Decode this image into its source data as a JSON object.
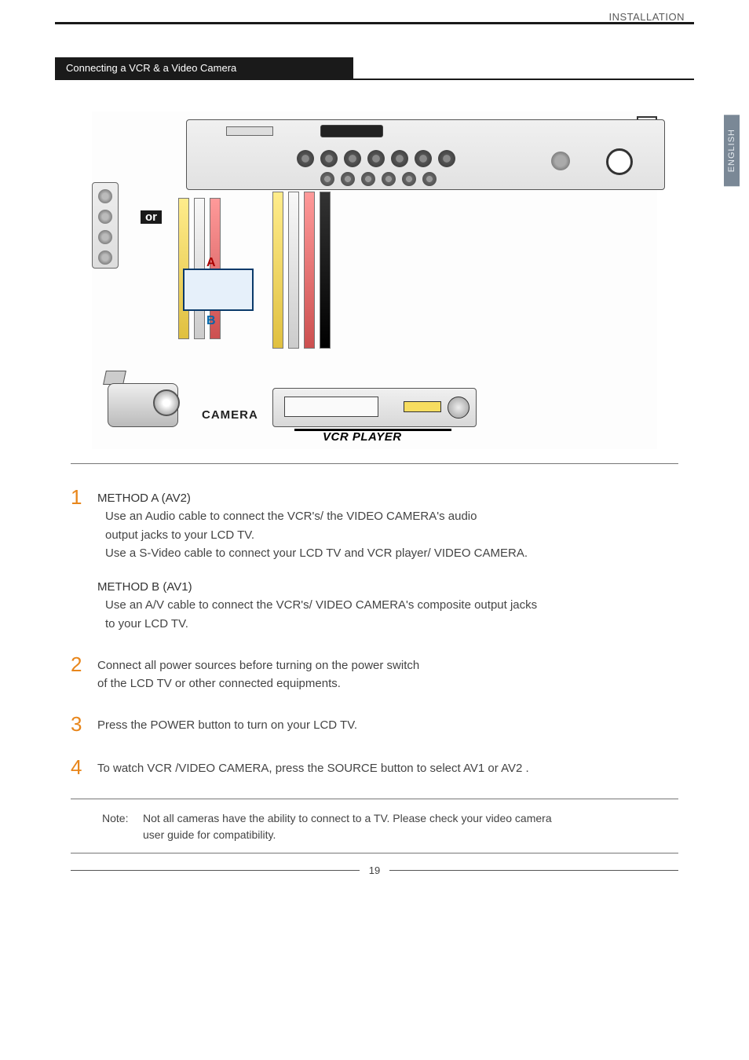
{
  "header": {
    "category": "INSTALLATION",
    "section_title": "Connecting a VCR & a Video Camera"
  },
  "language_tab": "ENGLISH",
  "diagram": {
    "or_label": "or",
    "marker_a": "A",
    "marker_b": "B",
    "camera_label": "CAMERA",
    "vcr_label": "VCR PLAYER"
  },
  "steps": [
    {
      "num": "1",
      "blocks": [
        {
          "head": "METHOD A (AV2)",
          "lines": [
            "Use an Audio cable to connect the VCR's/ the VIDEO CAMERA's audio",
            "output jacks to your LCD TV.",
            "Use a S-Video cable to connect your LCD TV and VCR player/ VIDEO CAMERA."
          ]
        },
        {
          "head": "METHOD B (AV1)",
          "lines": [
            "Use an A/V cable to connect the VCR's/ VIDEO CAMERA's composite output jacks",
            "to your LCD TV."
          ]
        }
      ]
    },
    {
      "num": "2",
      "text_lines": [
        "Connect all power sources before turning on the power switch",
        "of the LCD TV or other connected equipments."
      ]
    },
    {
      "num": "3",
      "text_lines": [
        "Press the POWER button to turn on your LCD TV."
      ]
    },
    {
      "num": "4",
      "text_lines": [
        "To watch VCR /VIDEO CAMERA, press the SOURCE button to select AV1 or AV2 ."
      ]
    }
  ],
  "note": {
    "label": "Note:",
    "lines": [
      "Not all cameras have the ability to connect to a TV. Please check your video camera",
      "user guide for compatibility."
    ]
  },
  "page_number": "19"
}
